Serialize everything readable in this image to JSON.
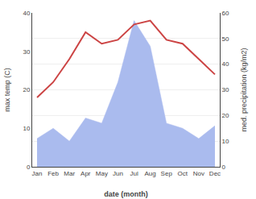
{
  "chart_data": {
    "type": "line",
    "categories": [
      "Jan",
      "Feb",
      "Mar",
      "Apr",
      "May",
      "Jun",
      "Jul",
      "Aug",
      "Sep",
      "Oct",
      "Nov",
      "Dec"
    ],
    "xlabel": "date (month)",
    "ylabel": "max temp (C)",
    "y2label": "med. precipitation (kg/m2)",
    "series": [
      {
        "type": "area",
        "axis": "y2",
        "color": "#aabbee",
        "values": [
          11,
          15,
          10,
          19,
          17,
          33,
          57,
          47,
          17,
          15,
          11,
          16
        ]
      },
      {
        "type": "line",
        "color": "#cc4444",
        "values": [
          18,
          22,
          28,
          35,
          32,
          33,
          37,
          38,
          33,
          32,
          28,
          24
        ]
      }
    ],
    "ylim": [
      0,
      40
    ],
    "yticks": [
      0,
      10,
      20,
      30,
      40
    ],
    "y2lim": [
      0,
      60
    ],
    "y2ticks": [
      0,
      10,
      20,
      30,
      40,
      50,
      60
    ],
    "grid": true
  }
}
